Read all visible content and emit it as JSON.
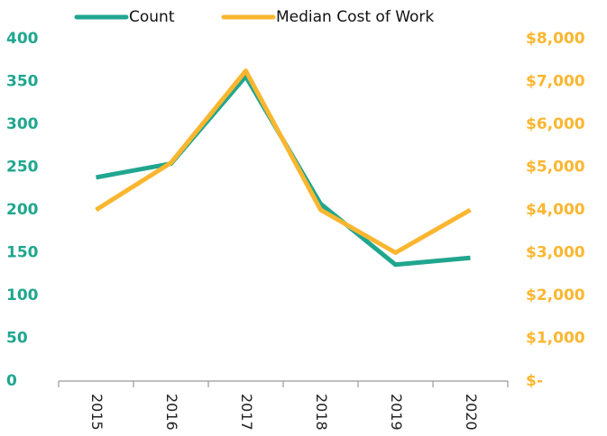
{
  "chart_data": {
    "type": "line",
    "categories": [
      "2015",
      "2016",
      "2017",
      "2018",
      "2019",
      "2020"
    ],
    "series": [
      {
        "name": "Count",
        "color": "#20a68f",
        "values": [
          238,
          254,
          356,
          207,
          136,
          144
        ]
      },
      {
        "name": "Median Cost of Work",
        "color": "#fbb630",
        "axis": "y2",
        "values": [
          4000,
          5100,
          7250,
          4000,
          3000,
          4000
        ]
      }
    ],
    "ylim": [
      0,
      400
    ],
    "yticks": [
      0,
      50,
      100,
      150,
      200,
      250,
      300,
      350,
      400
    ],
    "y2lim": [
      0,
      8000
    ],
    "y2ticks": [
      {
        "value": 0,
        "label": "$-"
      },
      {
        "value": 1000,
        "label": "$1,000"
      },
      {
        "value": 2000,
        "label": "$2,000"
      },
      {
        "value": 3000,
        "label": "$3,000"
      },
      {
        "value": 4000,
        "label": "$4,000"
      },
      {
        "value": 5000,
        "label": "$5,000"
      },
      {
        "value": 6000,
        "label": "$6,000"
      },
      {
        "value": 7000,
        "label": "$7,000"
      },
      {
        "value": 8000,
        "label": "$8,000"
      }
    ],
    "legend": "top"
  }
}
